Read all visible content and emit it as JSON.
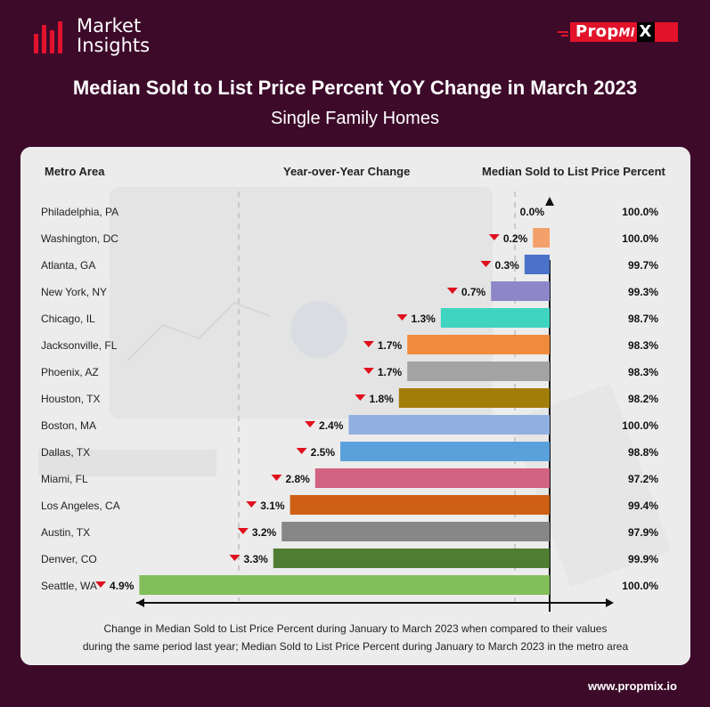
{
  "brand": {
    "logo_line1": "Market",
    "logo_line2": "Insights",
    "propmix_prop": "Prop",
    "propmix_mi": "Mi",
    "propmix_x": "X",
    "website": "www.propmix.io"
  },
  "header": {
    "title": "Median Sold to List Price Percent YoY Change in March 2023",
    "subtitle": "Single Family Homes"
  },
  "columns": {
    "metro": "Metro Area",
    "yoy": "Year-over-Year Change",
    "median": "Median Sold to List Price Percent"
  },
  "footnote": {
    "line1": "Change in Median Sold to List Price Percent during January to March 2023 when compared to their values",
    "line2": "during the same period last year; Median Sold to List Price Percent during January to March 2023 in the metro area"
  },
  "chart_data": {
    "type": "bar",
    "orientation": "horizontal",
    "categories": [
      "Philadelphia, PA",
      "Washington, DC",
      "Atlanta, GA",
      "New York, NY",
      "Chicago, IL",
      "Jacksonville, FL",
      "Phoenix, AZ",
      "Houston, TX",
      "Boston, MA",
      "Dallas, TX",
      "Miami, FL",
      "Los Angeles, CA",
      "Austin, TX",
      "Denver, CO",
      "Seattle, WA"
    ],
    "yoy_change": [
      0.0,
      -0.2,
      -0.3,
      -0.7,
      -1.3,
      -1.7,
      -1.7,
      -1.8,
      -2.4,
      -2.5,
      -2.8,
      -3.1,
      -3.2,
      -3.3,
      -4.9
    ],
    "yoy_labels": [
      "0.0%",
      "0.2%",
      "0.3%",
      "0.7%",
      "1.3%",
      "1.7%",
      "1.7%",
      "1.8%",
      "2.4%",
      "2.5%",
      "2.8%",
      "3.1%",
      "3.2%",
      "3.3%",
      "4.9%"
    ],
    "median_labels": [
      "100.0%",
      "100.0%",
      "99.7%",
      "99.3%",
      "98.7%",
      "98.3%",
      "98.3%",
      "98.2%",
      "100.0%",
      "98.8%",
      "97.2%",
      "99.4%",
      "97.9%",
      "99.9%",
      "100.0%"
    ],
    "median_values": [
      100.0,
      100.0,
      99.7,
      99.3,
      98.7,
      98.3,
      98.3,
      98.2,
      100.0,
      98.8,
      97.2,
      99.4,
      97.9,
      99.9,
      100.0
    ],
    "bar_colors": [
      "#f4a06a",
      "#f4a06a",
      "#4a72c9",
      "#8d87c9",
      "#3fd4c0",
      "#f08a3c",
      "#a3a3a3",
      "#a37d0a",
      "#92b0df",
      "#5aa1dc",
      "#d26382",
      "#cf5f14",
      "#878787",
      "#4f7d31",
      "#82be59"
    ],
    "decrease_marker_color": "#e0101e",
    "xlim": [
      -5.0,
      0.0
    ]
  }
}
